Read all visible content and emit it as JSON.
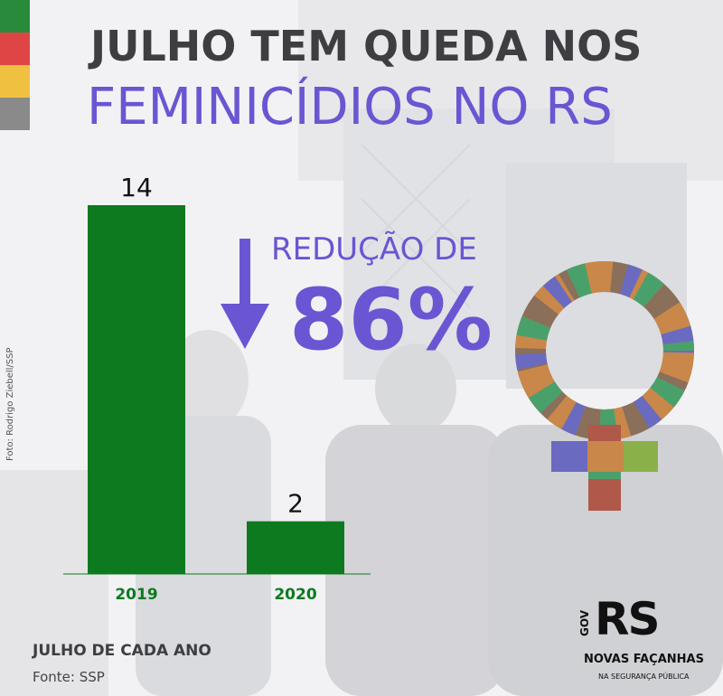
{
  "header": {
    "title_line1": "JULHO TEM QUEDA NOS",
    "title_line2": "FEMINICÍDIOS NO RS"
  },
  "side_stripes": [
    "#2a8a3c",
    "#e04545",
    "#f0c040",
    "#8a8a8a"
  ],
  "highlight": {
    "label": "REDUÇÃO DE",
    "value": "86%"
  },
  "photo_credit": "Foto: Rodrigo Ziebell/SSP",
  "footer": {
    "title": "JULHO DE CADA ANO",
    "source": "Fonte: SSP"
  },
  "logo": {
    "gov": "GOV",
    "rs": "RS",
    "line1": "NOVAS FAÇANHAS",
    "line2": "NA SEGURANÇA PÚBLICA"
  },
  "colors": {
    "bar": "#0d7a1f",
    "title_dark": "#3e3e42",
    "accent": "#6a55d3"
  },
  "icons": [
    "arrow-down-icon",
    "female-symbol-icon"
  ],
  "chart_data": {
    "type": "bar",
    "categories": [
      "2019",
      "2020"
    ],
    "values": [
      14,
      2
    ],
    "title": "",
    "xlabel": "",
    "ylabel": "",
    "ylim": [
      0,
      14
    ]
  }
}
